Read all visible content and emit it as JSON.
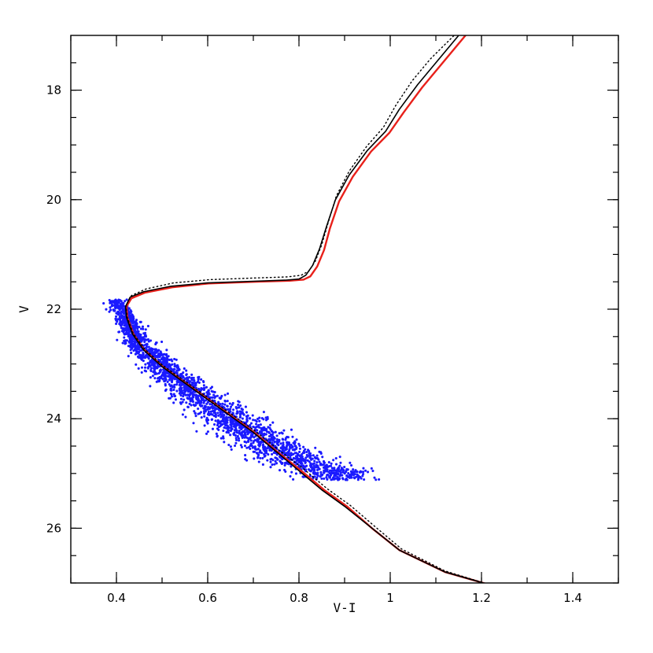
{
  "chart_data": {
    "type": "scatter",
    "title": "",
    "xlabel": "V-I",
    "ylabel": "V",
    "xlim": [
      0.3,
      1.5
    ],
    "ylim": [
      27.0,
      17.0
    ],
    "y_inverted": true,
    "xticks": [
      0.4,
      0.6,
      0.8,
      1,
      1.2,
      1.4
    ],
    "xtick_labels": [
      "0.4",
      "0.6",
      "0.8",
      "1",
      "1.2",
      "1.4"
    ],
    "yticks": [
      18,
      20,
      22,
      24,
      26
    ],
    "ytick_labels": [
      "18",
      "20",
      "22",
      "24",
      "26"
    ],
    "grid": false,
    "legend": "none",
    "colors": {
      "points": "#1a1aff",
      "isochrone_red": "#e8201a",
      "isochrone_black": "#000000",
      "isochrone_dotted": "#000000"
    },
    "scatter_ridge": [
      [
        0.4,
        21.85
      ],
      [
        0.415,
        22.05
      ],
      [
        0.43,
        22.35
      ],
      [
        0.45,
        22.65
      ],
      [
        0.48,
        22.9
      ],
      [
        0.51,
        23.15
      ],
      [
        0.55,
        23.4
      ],
      [
        0.59,
        23.65
      ],
      [
        0.63,
        23.9
      ],
      [
        0.67,
        24.1
      ],
      [
        0.71,
        24.35
      ],
      [
        0.75,
        24.55
      ],
      [
        0.79,
        24.75
      ],
      [
        0.83,
        24.9
      ],
      [
        0.88,
        24.95
      ]
    ],
    "scatter_points_approx": 2400,
    "isochrones": [
      {
        "style": "solid",
        "color": "#000000",
        "points": [
          [
            1.225,
            27.05
          ],
          [
            1.12,
            26.8
          ],
          [
            1.02,
            26.4
          ],
          [
            0.96,
            26.0
          ],
          [
            0.9,
            25.6
          ],
          [
            0.85,
            25.3
          ],
          [
            0.8,
            24.95
          ],
          [
            0.75,
            24.6
          ],
          [
            0.7,
            24.25
          ],
          [
            0.65,
            23.95
          ],
          [
            0.6,
            23.65
          ],
          [
            0.55,
            23.35
          ],
          [
            0.5,
            23.05
          ],
          [
            0.46,
            22.75
          ],
          [
            0.435,
            22.45
          ],
          [
            0.422,
            22.15
          ],
          [
            0.42,
            21.95
          ],
          [
            0.43,
            21.78
          ],
          [
            0.46,
            21.68
          ],
          [
            0.52,
            21.58
          ],
          [
            0.6,
            21.52
          ],
          [
            0.7,
            21.49
          ],
          [
            0.77,
            21.47
          ],
          [
            0.8,
            21.45
          ],
          [
            0.815,
            21.38
          ],
          [
            0.83,
            21.2
          ],
          [
            0.845,
            20.9
          ],
          [
            0.86,
            20.5
          ],
          [
            0.88,
            20.0
          ],
          [
            0.91,
            19.55
          ],
          [
            0.95,
            19.1
          ],
          [
            0.99,
            18.75
          ],
          [
            1.02,
            18.35
          ],
          [
            1.06,
            17.9
          ],
          [
            1.1,
            17.5
          ],
          [
            1.15,
            17.0
          ]
        ]
      },
      {
        "style": "solid",
        "color": "#e8201a",
        "points": [
          [
            1.225,
            27.05
          ],
          [
            1.12,
            26.8
          ],
          [
            1.02,
            26.4
          ],
          [
            0.96,
            26.0
          ],
          [
            0.905,
            25.6
          ],
          [
            0.855,
            25.3
          ],
          [
            0.805,
            24.95
          ],
          [
            0.752,
            24.6
          ],
          [
            0.702,
            24.25
          ],
          [
            0.652,
            23.95
          ],
          [
            0.602,
            23.65
          ],
          [
            0.552,
            23.35
          ],
          [
            0.502,
            23.05
          ],
          [
            0.462,
            22.75
          ],
          [
            0.437,
            22.45
          ],
          [
            0.424,
            22.15
          ],
          [
            0.422,
            21.95
          ],
          [
            0.433,
            21.8
          ],
          [
            0.462,
            21.7
          ],
          [
            0.522,
            21.6
          ],
          [
            0.602,
            21.53
          ],
          [
            0.702,
            21.5
          ],
          [
            0.78,
            21.48
          ],
          [
            0.81,
            21.46
          ],
          [
            0.825,
            21.4
          ],
          [
            0.84,
            21.22
          ],
          [
            0.855,
            20.92
          ],
          [
            0.868,
            20.52
          ],
          [
            0.888,
            20.03
          ],
          [
            0.918,
            19.58
          ],
          [
            0.958,
            19.12
          ],
          [
            0.998,
            18.78
          ],
          [
            1.03,
            18.4
          ],
          [
            1.07,
            17.95
          ],
          [
            1.11,
            17.55
          ],
          [
            1.165,
            17.0
          ]
        ]
      },
      {
        "style": "dotted",
        "color": "#000000",
        "points": [
          [
            1.225,
            27.05
          ],
          [
            1.12,
            26.78
          ],
          [
            1.025,
            26.38
          ],
          [
            0.968,
            25.98
          ],
          [
            0.912,
            25.58
          ],
          [
            0.862,
            25.28
          ],
          [
            0.812,
            24.93
          ],
          [
            0.757,
            24.58
          ],
          [
            0.705,
            24.23
          ],
          [
            0.654,
            23.93
          ],
          [
            0.603,
            23.63
          ],
          [
            0.553,
            23.33
          ],
          [
            0.502,
            23.03
          ],
          [
            0.462,
            22.73
          ],
          [
            0.436,
            22.43
          ],
          [
            0.423,
            22.13
          ],
          [
            0.421,
            21.93
          ],
          [
            0.433,
            21.75
          ],
          [
            0.465,
            21.63
          ],
          [
            0.525,
            21.52
          ],
          [
            0.605,
            21.46
          ],
          [
            0.705,
            21.43
          ],
          [
            0.775,
            21.41
          ],
          [
            0.805,
            21.38
          ],
          [
            0.822,
            21.3
          ],
          [
            0.836,
            21.12
          ],
          [
            0.85,
            20.82
          ],
          [
            0.864,
            20.42
          ],
          [
            0.882,
            19.93
          ],
          [
            0.91,
            19.48
          ],
          [
            0.948,
            19.03
          ],
          [
            0.985,
            18.68
          ],
          [
            1.012,
            18.28
          ],
          [
            1.048,
            17.83
          ],
          [
            1.088,
            17.43
          ],
          [
            1.14,
            17.0
          ]
        ]
      }
    ]
  }
}
